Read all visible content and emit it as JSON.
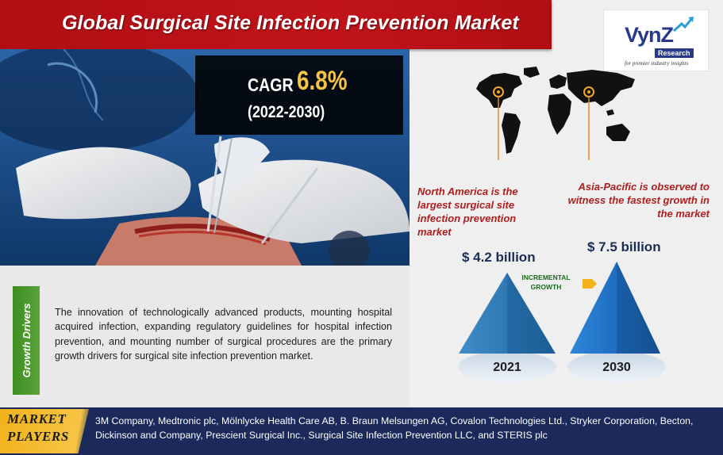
{
  "title": "Global Surgical Site Infection Prevention Market",
  "logo": {
    "name": "VynZ",
    "sub": "Research",
    "tagline": "for premier industry insights"
  },
  "cagr": {
    "label": "CAGR",
    "value": "6.8%",
    "period": "(2022-2030)"
  },
  "map": {
    "north_america_text": "North America is the largest surgical site infection prevention market",
    "apac_text": "Asia-Pacific is observed to witness the fastest growth in the market",
    "marker_color": "#f5a623",
    "annotation_color": "#b01e1e"
  },
  "growth_drivers": {
    "tab_label": "Growth Drivers",
    "text": "The innovation of technologically advanced products, mounting hospital acquired infection, expanding regulatory guidelines for hospital infection prevention, and mounting number of surgical procedures are the primary growth drivers for surgical site infection prevention market."
  },
  "market_size": {
    "start": {
      "value": "$ 4.2 billion",
      "year": "2021"
    },
    "end": {
      "value": "$ 7.5 billion",
      "year": "2030"
    },
    "incremental_label": "INCREMENTAL GROWTH"
  },
  "market_players": {
    "label_line1": "MARKET",
    "label_line2": "PLAYERS",
    "text": "3M Company, Medtronic plc, Mölnlycke Health Care AB, B. Braun Melsungen AG, Covalon Technologies Ltd., Stryker Corporation, Becton, Dickinson and Company, Prescient Surgical Inc., Surgical Site Infection Prevention LLC, and STERIS plc"
  },
  "colors": {
    "title_banner": "#b10e14",
    "cagr_value": "#f6c445",
    "growth_tab": "#4a9a2c",
    "players_strip": "#1b2a5b",
    "players_tag": "#f2b21b",
    "triangle_small": "#2f78b4",
    "triangle_large": "#1f6fc2"
  }
}
